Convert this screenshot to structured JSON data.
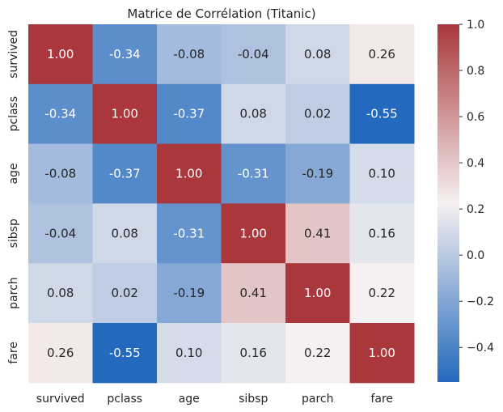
{
  "chart_data": {
    "type": "heatmap",
    "title": "Matrice de Corrélation (Titanic)",
    "x_labels": [
      "survived",
      "pclass",
      "age",
      "sibsp",
      "parch",
      "fare"
    ],
    "y_labels": [
      "survived",
      "pclass",
      "age",
      "sibsp",
      "parch",
      "fare"
    ],
    "values": [
      [
        1.0,
        -0.34,
        -0.08,
        -0.04,
        0.08,
        0.26
      ],
      [
        -0.34,
        1.0,
        -0.37,
        0.08,
        0.02,
        -0.55
      ],
      [
        -0.08,
        -0.37,
        1.0,
        -0.31,
        -0.19,
        0.1
      ],
      [
        -0.04,
        0.08,
        -0.31,
        1.0,
        0.41,
        0.16
      ],
      [
        0.08,
        0.02,
        -0.19,
        0.41,
        1.0,
        0.22
      ],
      [
        0.26,
        -0.55,
        0.1,
        0.16,
        0.22,
        1.0
      ]
    ],
    "value_format": "0.00",
    "colormap": "vlag",
    "color_range": [
      -0.55,
      1.0
    ],
    "colorbar_ticks": [
      "1.0",
      "0.8",
      "0.6",
      "0.4",
      "0.2",
      "0.0",
      "−0.2",
      "−0.4"
    ],
    "colorbar_tick_values": [
      1.0,
      0.8,
      0.6,
      0.4,
      0.2,
      0.0,
      -0.2,
      -0.4
    ],
    "colors": {
      "negative": "#2369bd",
      "neutral": "#f6f1f1",
      "positive": "#a9373b"
    }
  }
}
